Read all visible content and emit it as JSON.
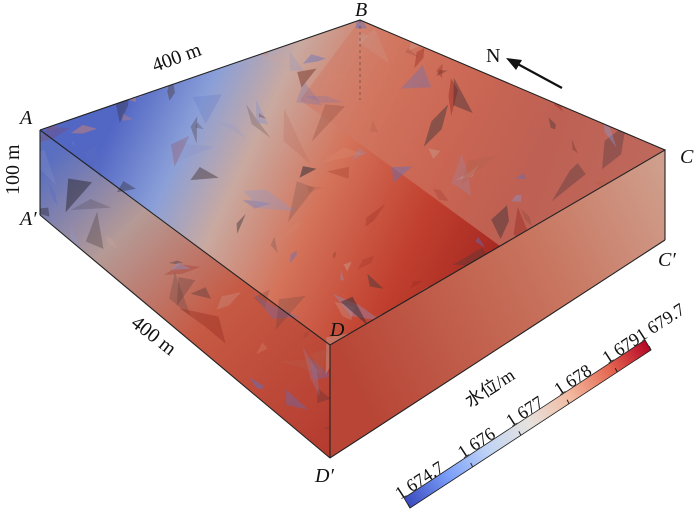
{
  "corners": {
    "A": "A",
    "A_prime": "A′",
    "B": "B",
    "C": "C",
    "C_prime": "C′",
    "D": "D",
    "D_prime": "D′"
  },
  "dimensions": {
    "top_edge": "400 m",
    "front_edge": "400 m",
    "height": "100 m"
  },
  "north": {
    "label": "N"
  },
  "colorbar": {
    "title": "水位/m",
    "ticks": [
      "1 674.7",
      "1 676",
      "1 677",
      "1 678",
      "1 679",
      "1 679.7"
    ],
    "tick_values": [
      1674.7,
      1676,
      1677,
      1678,
      1679,
      1679.7
    ],
    "min": 1674.7,
    "max": 1679.7,
    "colors": [
      "#3b4cc0",
      "#7b9ff9",
      "#c0d4f5",
      "#dddcdc",
      "#f2cbb7",
      "#ee8468",
      "#b40426"
    ]
  },
  "colors": {
    "corner_D": "#f5d800"
  }
}
